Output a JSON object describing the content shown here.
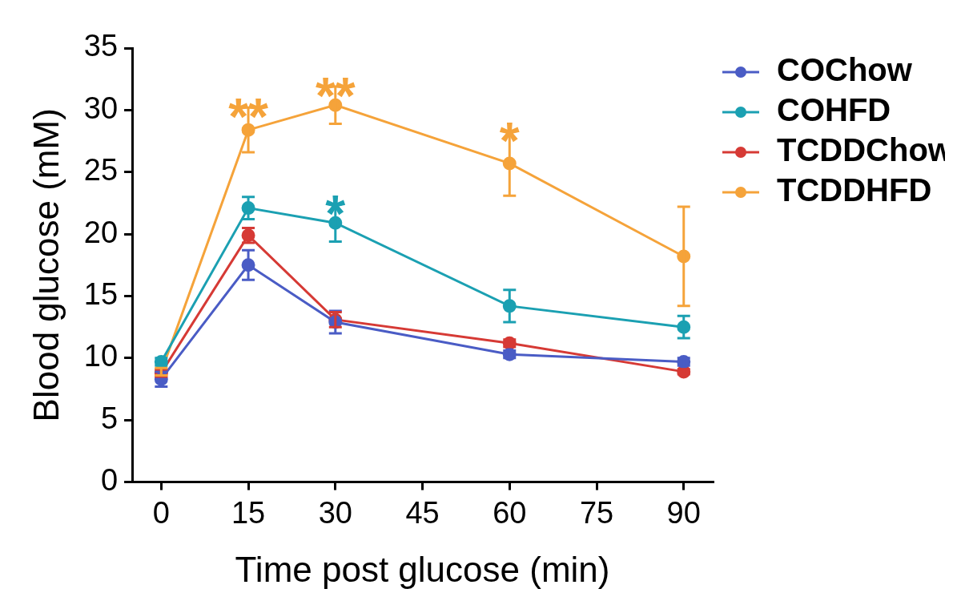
{
  "chart_data": {
    "type": "line",
    "x_label": "Time post glucose (min)",
    "y_label": "Blood glucose (mM)",
    "x": [
      0,
      15,
      30,
      60,
      90
    ],
    "xlim": [
      -5,
      95
    ],
    "xticks": [
      0,
      15,
      30,
      45,
      60,
      75,
      90
    ],
    "ylim": [
      0,
      35
    ],
    "yticks": [
      0,
      5,
      10,
      15,
      20,
      25,
      30,
      35
    ],
    "grid": false,
    "legend": "top-right",
    "marker": "circle",
    "series": [
      {
        "name": "COChow",
        "color": "#4a5cc5",
        "values": [
          8.3,
          17.5,
          12.9,
          10.3,
          9.7
        ],
        "errors": [
          0.6,
          1.2,
          0.9,
          0.3,
          0.3
        ]
      },
      {
        "name": "COHFD",
        "color": "#1ba0b2",
        "values": [
          9.7,
          22.1,
          20.9,
          14.2,
          12.5
        ],
        "errors": [
          0.3,
          0.9,
          1.5,
          1.3,
          0.9
        ]
      },
      {
        "name": "TCDDChow",
        "color": "#d63a35",
        "values": [
          8.8,
          19.9,
          13.1,
          11.2,
          8.9
        ],
        "errors": [
          0.3,
          0.6,
          0.6,
          0.3,
          0.2
        ]
      },
      {
        "name": "TCDDHFD",
        "color": "#f5a33a",
        "values": [
          8.9,
          28.4,
          30.4,
          25.7,
          18.2
        ],
        "errors": [
          0.3,
          1.8,
          1.5,
          2.6,
          4.0
        ]
      }
    ],
    "annotations": [
      {
        "text": "**",
        "x": 15,
        "series": "TCDDHFD"
      },
      {
        "text": "**",
        "x": 30,
        "series": "TCDDHFD"
      },
      {
        "text": "*",
        "x": 60,
        "series": "TCDDHFD"
      },
      {
        "text": "*",
        "x": 30,
        "series": "COHFD"
      }
    ]
  }
}
